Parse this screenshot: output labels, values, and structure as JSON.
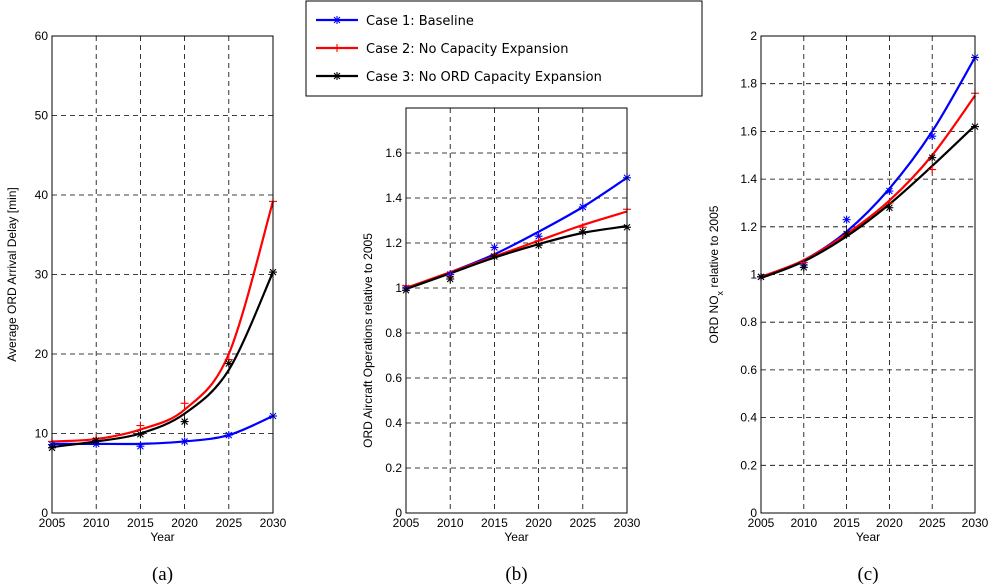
{
  "legend": {
    "placement": "top-center",
    "entries": [
      {
        "label": "Case 1: Baseline",
        "color": "#0000ff",
        "marker": "x-star"
      },
      {
        "label": "Case 2: No Capacity Expansion",
        "color": "#ff0000",
        "marker": "plus"
      },
      {
        "label": "Case 3: No ORD Capacity Expansion",
        "color": "#000000",
        "marker": "x-star"
      }
    ]
  },
  "chart_data": [
    {
      "type": "line",
      "caption": "(a)",
      "xlabel": "Year",
      "ylabel": "Average ORD Arrival Delay [min]",
      "ylabel_sub": "",
      "ylabel_rest": "",
      "x": [
        2005,
        2010,
        2015,
        2020,
        2025,
        2030
      ],
      "xlim": [
        2005,
        2030
      ],
      "ylim": [
        0,
        60
      ],
      "xticks": [
        "2005",
        "2010",
        "2015",
        "2020",
        "2025",
        "2030"
      ],
      "yticks": [
        "0",
        "10",
        "20",
        "30",
        "40",
        "50",
        "60"
      ],
      "grid": true,
      "series": [
        {
          "name": "Case 1: Baseline",
          "color": "#0000ff",
          "line": [
            8.7,
            8.7,
            8.7,
            9.0,
            9.8,
            12.2
          ],
          "points": [
            8.6,
            8.7,
            8.4,
            9.0,
            9.8,
            12.2
          ]
        },
        {
          "name": "Case 2: No Capacity Expansion",
          "color": "#ff0000",
          "line": [
            9.0,
            9.3,
            10.5,
            13.0,
            20.0,
            39.2
          ],
          "points": [
            9.0,
            9.4,
            11.0,
            13.8,
            19.3,
            39.2
          ]
        },
        {
          "name": "Case 3: No ORD Capacity Expansion",
          "color": "#000000",
          "line": [
            8.3,
            9.0,
            10.0,
            12.5,
            18.0,
            30.3
          ],
          "points": [
            8.2,
            9.1,
            9.9,
            11.5,
            18.8,
            30.3
          ]
        }
      ]
    },
    {
      "type": "line",
      "caption": "(b)",
      "xlabel": "Year",
      "ylabel": "ORD Aircraft Operations relative to 2005",
      "ylabel_sub": "",
      "ylabel_rest": "",
      "x": [
        2005,
        2010,
        2015,
        2020,
        2025,
        2030
      ],
      "xlim": [
        2005,
        2030
      ],
      "ylim": [
        0,
        1.8
      ],
      "xticks": [
        "2005",
        "2010",
        "2015",
        "2020",
        "2025",
        "2030"
      ],
      "yticks": [
        "0",
        "0.2",
        "0.4",
        "0.6",
        "0.8",
        "1",
        "1.2",
        "1.4",
        "1.6"
      ],
      "grid": true,
      "series": [
        {
          "name": "Case 1: Baseline",
          "color": "#0000ff",
          "line": [
            1.0,
            1.07,
            1.15,
            1.25,
            1.36,
            1.49
          ],
          "points": [
            1.0,
            1.06,
            1.18,
            1.23,
            1.36,
            1.49
          ]
        },
        {
          "name": "Case 2: No Capacity Expansion",
          "color": "#ff0000",
          "line": [
            1.0,
            1.07,
            1.14,
            1.21,
            1.28,
            1.34
          ],
          "points": [
            1.01,
            1.05,
            1.15,
            1.21,
            1.27,
            1.35
          ]
        },
        {
          "name": "Case 3: No ORD Capacity Expansion",
          "color": "#000000",
          "line": [
            0.995,
            1.065,
            1.135,
            1.195,
            1.245,
            1.275
          ],
          "points": [
            0.99,
            1.04,
            1.14,
            1.19,
            1.25,
            1.27
          ]
        }
      ]
    },
    {
      "type": "line",
      "caption": "(c)",
      "xlabel": "Year",
      "ylabel": "ORD NO",
      "ylabel_sub": "x",
      "ylabel_rest": " relative to 2005",
      "x": [
        2005,
        2010,
        2015,
        2020,
        2025,
        2030
      ],
      "xlim": [
        2005,
        2030
      ],
      "ylim": [
        0,
        2
      ],
      "xticks": [
        "2005",
        "2010",
        "2015",
        "2020",
        "2025",
        "2030"
      ],
      "yticks": [
        "0",
        "0.2",
        "0.4",
        "0.6",
        "0.8",
        "1",
        "1.2",
        "1.4",
        "1.6",
        "1.8",
        "2"
      ],
      "grid": true,
      "series": [
        {
          "name": "Case 1: Baseline",
          "color": "#0000ff",
          "line": [
            0.99,
            1.06,
            1.18,
            1.36,
            1.6,
            1.91
          ],
          "points": [
            0.99,
            1.04,
            1.23,
            1.35,
            1.58,
            1.91
          ]
        },
        {
          "name": "Case 2: No Capacity Expansion",
          "color": "#ff0000",
          "line": [
            0.99,
            1.06,
            1.17,
            1.31,
            1.5,
            1.75
          ],
          "points": [
            0.99,
            1.05,
            1.17,
            1.3,
            1.44,
            1.76
          ]
        },
        {
          "name": "Case 3: No ORD Capacity Expansion",
          "color": "#000000",
          "line": [
            0.985,
            1.055,
            1.16,
            1.295,
            1.455,
            1.625
          ],
          "points": [
            0.99,
            1.03,
            1.17,
            1.28,
            1.49,
            1.62
          ]
        }
      ]
    }
  ]
}
